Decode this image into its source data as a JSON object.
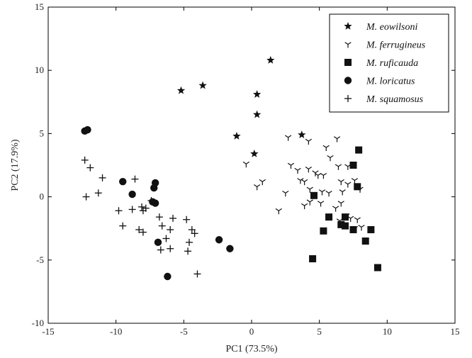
{
  "chart_data": {
    "type": "scatter",
    "title": "",
    "xlabel": "PC1 (73.5%)",
    "ylabel": "PC2 (17.9%)",
    "xlim": [
      -15,
      15
    ],
    "ylim": [
      -10,
      15
    ],
    "xticks": [
      -15,
      -10,
      -5,
      0,
      5,
      10,
      15
    ],
    "yticks": [
      -10,
      -5,
      0,
      5,
      10,
      15
    ],
    "grid": false,
    "legend_position": "top-right",
    "series": [
      {
        "name": "M. eowilsoni",
        "marker": "star",
        "points": [
          [
            -5.2,
            8.4
          ],
          [
            -3.6,
            8.8
          ],
          [
            1.4,
            10.8
          ],
          [
            0.4,
            8.1
          ],
          [
            0.4,
            6.5
          ],
          [
            -1.1,
            4.8
          ],
          [
            3.7,
            4.9
          ],
          [
            0.2,
            3.4
          ]
        ]
      },
      {
        "name": "M. ferrugineus",
        "marker": "tri-down",
        "points": [
          [
            2.7,
            4.7
          ],
          [
            4.2,
            4.4
          ],
          [
            5.5,
            3.9
          ],
          [
            6.3,
            4.6
          ],
          [
            5.8,
            3.1
          ],
          [
            4.9,
            1.7
          ],
          [
            -0.4,
            2.6
          ],
          [
            0.4,
            0.8
          ],
          [
            0.8,
            1.2
          ],
          [
            2.9,
            2.5
          ],
          [
            3.4,
            2.1
          ],
          [
            4.2,
            2.2
          ],
          [
            4.7,
            1.9
          ],
          [
            5.3,
            1.7
          ],
          [
            6.4,
            2.4
          ],
          [
            7.1,
            2.4
          ],
          [
            2.5,
            0.3
          ],
          [
            3.6,
            1.3
          ],
          [
            3.9,
            1.2
          ],
          [
            4.3,
            0.6
          ],
          [
            5.2,
            0.4
          ],
          [
            5.7,
            0.3
          ],
          [
            6.6,
            1.2
          ],
          [
            7.1,
            1.0
          ],
          [
            6.7,
            0.4
          ],
          [
            7.6,
            1.3
          ],
          [
            8.0,
            0.6
          ],
          [
            2.0,
            -1.1
          ],
          [
            3.9,
            -0.7
          ],
          [
            4.3,
            -0.4
          ],
          [
            5.1,
            -0.5
          ],
          [
            6.2,
            -0.9
          ],
          [
            6.6,
            -0.5
          ],
          [
            7.3,
            -1.7
          ],
          [
            7.8,
            -1.8
          ],
          [
            8.1,
            -2.4
          ],
          [
            6.5,
            -1.9
          ],
          [
            7.0,
            -1.5
          ],
          [
            7.6,
            -2.5
          ]
        ]
      },
      {
        "name": "M. ruficauda",
        "marker": "square",
        "points": [
          [
            7.9,
            3.7
          ],
          [
            7.5,
            2.5
          ],
          [
            7.8,
            0.8
          ],
          [
            4.6,
            0.1
          ],
          [
            5.7,
            -1.6
          ],
          [
            6.9,
            -1.6
          ],
          [
            5.3,
            -2.7
          ],
          [
            6.6,
            -2.2
          ],
          [
            6.9,
            -2.3
          ],
          [
            7.5,
            -2.6
          ],
          [
            8.8,
            -2.6
          ],
          [
            8.4,
            -3.5
          ],
          [
            4.5,
            -4.9
          ],
          [
            9.3,
            -5.6
          ]
        ]
      },
      {
        "name": "M. loricatus",
        "marker": "circle",
        "points": [
          [
            -12.3,
            5.2
          ],
          [
            -12.1,
            5.3
          ],
          [
            -9.5,
            1.2
          ],
          [
            -7.1,
            1.1
          ],
          [
            -7.2,
            0.7
          ],
          [
            -8.8,
            0.2
          ],
          [
            -7.3,
            -0.4
          ],
          [
            -7.1,
            -0.5
          ],
          [
            -6.9,
            -3.6
          ],
          [
            -2.4,
            -3.4
          ],
          [
            -1.6,
            -4.1
          ],
          [
            -6.2,
            -6.3
          ]
        ]
      },
      {
        "name": "M. squamosus",
        "marker": "plus",
        "points": [
          [
            -12.3,
            2.9
          ],
          [
            -11.9,
            2.3
          ],
          [
            -11.0,
            1.5
          ],
          [
            -8.6,
            1.4
          ],
          [
            -12.2,
            0.0
          ],
          [
            -11.3,
            0.3
          ],
          [
            -9.8,
            -1.1
          ],
          [
            -8.8,
            -1.0
          ],
          [
            -8.1,
            -0.8
          ],
          [
            -8.0,
            -1.1
          ],
          [
            -7.8,
            -0.9
          ],
          [
            -7.4,
            -0.3
          ],
          [
            -6.8,
            -1.6
          ],
          [
            -5.8,
            -1.7
          ],
          [
            -4.8,
            -1.8
          ],
          [
            -9.5,
            -2.3
          ],
          [
            -8.3,
            -2.6
          ],
          [
            -8.0,
            -2.8
          ],
          [
            -6.6,
            -2.3
          ],
          [
            -6.3,
            -3.3
          ],
          [
            -6.0,
            -2.6
          ],
          [
            -4.4,
            -2.6
          ],
          [
            -4.2,
            -2.9
          ],
          [
            -6.7,
            -4.2
          ],
          [
            -6.0,
            -4.1
          ],
          [
            -4.6,
            -3.6
          ],
          [
            -4.7,
            -4.3
          ],
          [
            -4.0,
            -6.1
          ]
        ]
      }
    ]
  }
}
